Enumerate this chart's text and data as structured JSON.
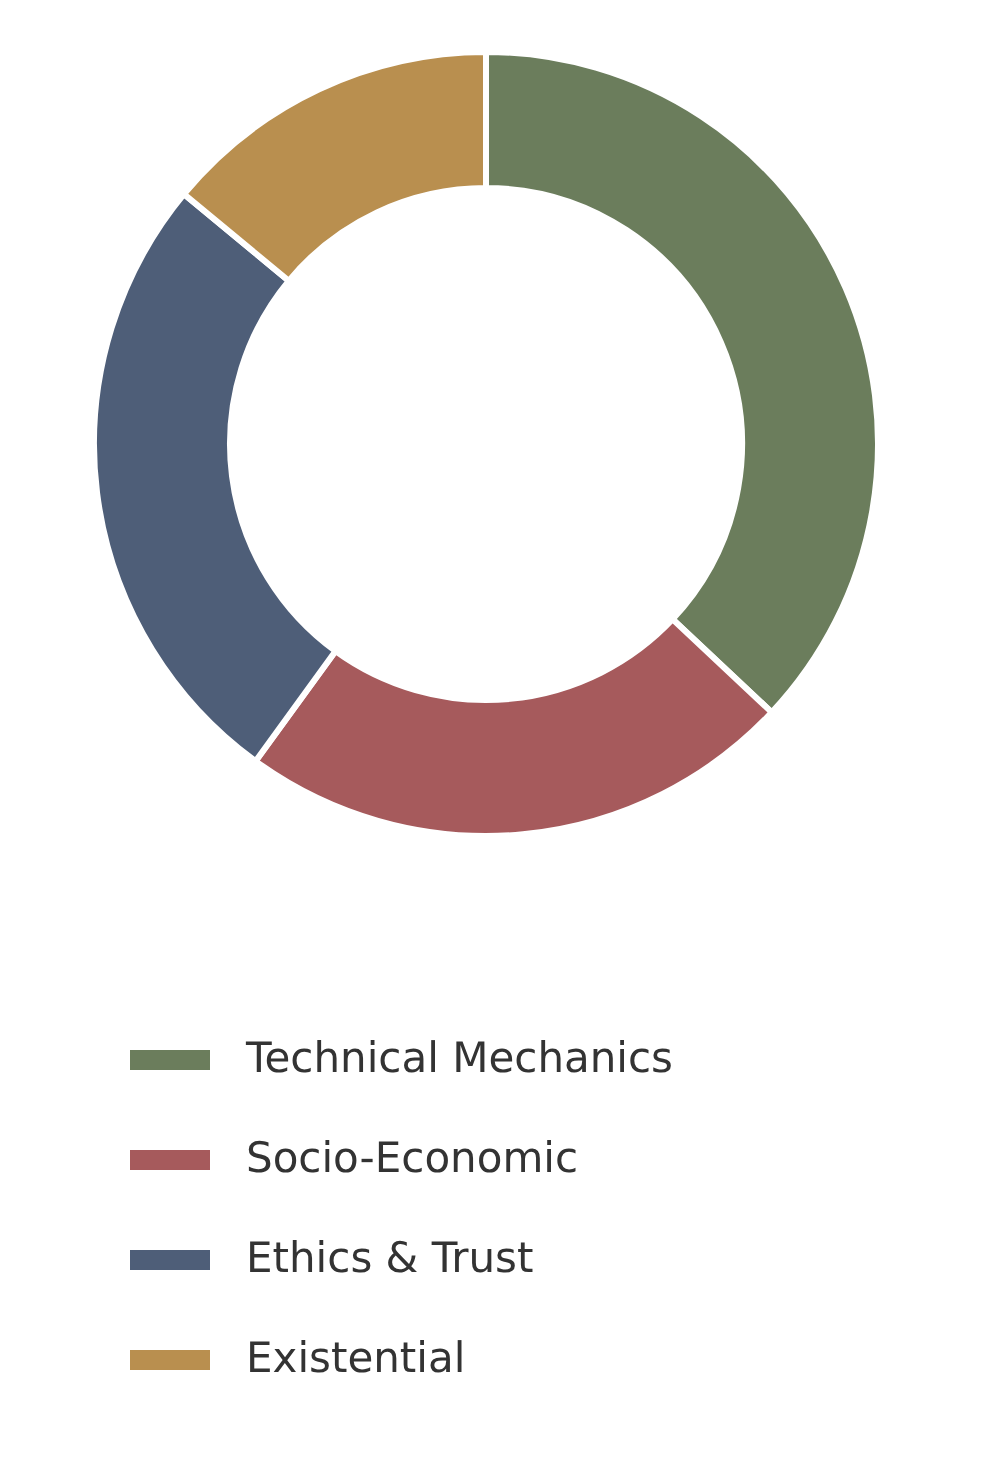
{
  "chart_data": {
    "type": "donut",
    "categories": [
      "Technical Mechanics",
      "Socio-Economic",
      "Ethics & Trust",
      "Existential"
    ],
    "values": [
      37,
      23,
      26,
      14
    ],
    "colors": [
      "#6b7d5c",
      "#a65a5c",
      "#4e5e78",
      "#b98f4f"
    ],
    "legend": "bottom"
  }
}
